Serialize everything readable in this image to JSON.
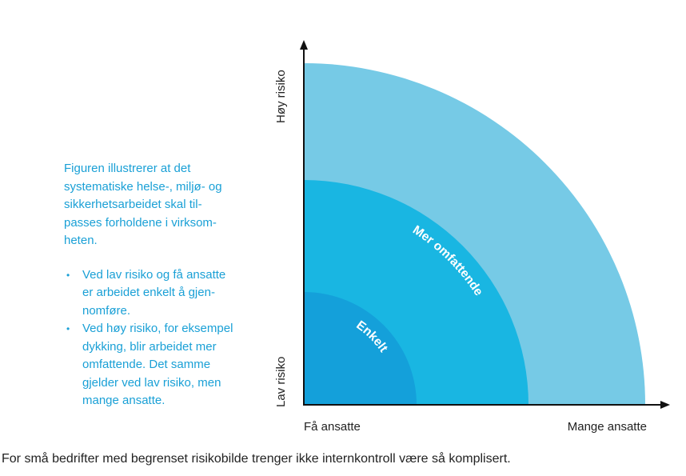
{
  "description": {
    "intro_lines": [
      "Figuren illustrerer at det",
      "systematiske helse-, miljø- og",
      "sikkerhetsarbeidet skal til-",
      "passes forholdene i virksom-",
      "heten."
    ],
    "bullet_marker": "•",
    "bullets": [
      {
        "lines": [
          "Ved lav risiko og få ansatte",
          "er arbeidet enkelt å gjen-",
          "nomføre."
        ]
      },
      {
        "lines": [
          "Ved høy risiko, for eksempel",
          "dykking, blir arbeidet mer",
          "omfattende. Det samme",
          "gjelder ved lav risiko, men",
          "mange ansatte."
        ]
      }
    ]
  },
  "diagram": {
    "y_axis": {
      "top_label": "Høy risiko",
      "bottom_label": "Lav risiko"
    },
    "x_axis": {
      "left_label": "Få ansatte",
      "right_label": "Mange ansatte"
    },
    "rings": [
      {
        "label": "Mer omfattende",
        "color": "#76cae6"
      },
      {
        "label": "",
        "color": "#19b6e2"
      },
      {
        "label": "Enkelt",
        "color": "#14a0da"
      }
    ],
    "axis_color": "#111111"
  },
  "caption": "For små bedrifter med begrenset risikobilde trenger ikke internkontroll være så komplisert."
}
